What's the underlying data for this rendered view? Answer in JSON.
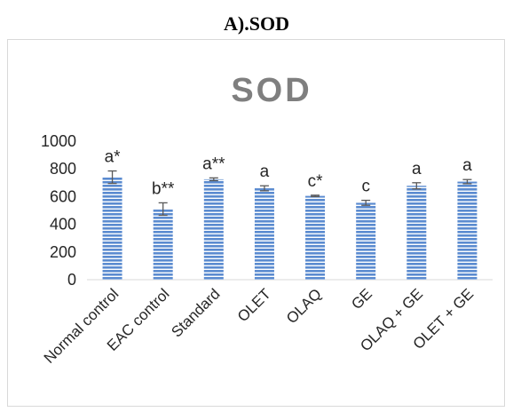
{
  "figure_caption": "A).SOD",
  "chart_data": {
    "type": "bar",
    "title": "SOD",
    "xlabel": "",
    "ylabel": "",
    "ylim": [
      0,
      1000
    ],
    "yticks": [
      0,
      200,
      400,
      600,
      800,
      1000
    ],
    "grid": false,
    "legend": "none",
    "categories": [
      "Normal control",
      "EAC control",
      "Standard",
      "OLET",
      "OLAQ",
      "GE",
      "OLAQ + GE",
      "OLET + GE"
    ],
    "values": [
      740,
      510,
      725,
      660,
      605,
      555,
      678,
      708
    ],
    "errors": [
      45,
      45,
      10,
      18,
      5,
      18,
      22,
      15
    ],
    "annotations": [
      "a*",
      "b**",
      "a**",
      "a",
      "c*",
      "c",
      "a",
      "a"
    ],
    "bar_color": "#5b8bd0",
    "bar_stripe_color": "#ffffff"
  }
}
